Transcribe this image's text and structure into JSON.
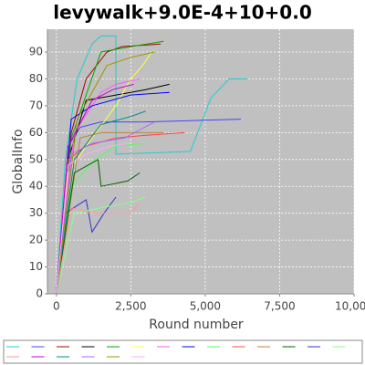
{
  "chart_data": {
    "type": "line",
    "title": "levywalk+9.0E-4+10+0.0",
    "x_label": "Round number",
    "y_label": "GlobalInfo",
    "xlim": [
      -300,
      10000
    ],
    "ylim": [
      0,
      98.5
    ],
    "xticks": [
      0,
      {
        "value": 2500,
        "label": "2,500"
      },
      {
        "value": 5000,
        "label": "5,000"
      },
      {
        "value": 7500,
        "label": "7,500"
      },
      {
        "value": 10000,
        "label": "10,000"
      }
    ],
    "yticks": [
      0,
      10,
      20,
      30,
      40,
      50,
      60,
      70,
      80,
      90
    ],
    "grid": true,
    "series": [
      {
        "color": "#22cccc",
        "x": [
          0,
          300,
          700,
          1200,
          1500,
          2000,
          2000,
          4500,
          5200,
          5800,
          6400
        ],
        "values": [
          0,
          50,
          80,
          93,
          96,
          96,
          52,
          53,
          73,
          80,
          80
        ]
      },
      {
        "color": "#4444ff",
        "x": [
          0,
          400,
          800,
          1500,
          3000,
          6200
        ],
        "values": [
          0,
          55,
          62,
          64,
          64,
          65
        ]
      },
      {
        "color": "#aa0000",
        "x": [
          0,
          500,
          1000,
          1700,
          2200,
          3500
        ],
        "values": [
          0,
          60,
          80,
          90,
          92,
          93
        ]
      },
      {
        "color": "#000000",
        "x": [
          0,
          400,
          1000,
          2500,
          3000,
          3800
        ],
        "values": [
          0,
          50,
          72,
          75,
          76,
          78
        ]
      },
      {
        "color": "#00aa00",
        "x": [
          0,
          500,
          1500,
          2500,
          3600
        ],
        "values": [
          0,
          58,
          90,
          92,
          94
        ]
      },
      {
        "color": "#ffff44",
        "x": [
          0,
          400,
          1000,
          2000,
          2500,
          2900,
          3200
        ],
        "values": [
          0,
          45,
          55,
          70,
          80,
          85,
          90
        ]
      },
      {
        "color": "#ff55ff",
        "x": [
          0,
          600,
          1500,
          2000,
          2800
        ],
        "values": [
          0,
          60,
          75,
          78,
          80
        ]
      },
      {
        "color": "#0000ff",
        "x": [
          0,
          500,
          1200,
          2500,
          3800
        ],
        "values": [
          0,
          65,
          70,
          74,
          75
        ]
      },
      {
        "color": "#55ff55",
        "x": [
          0,
          500,
          1300,
          2000,
          3000
        ],
        "values": [
          0,
          40,
          50,
          55,
          56
        ]
      },
      {
        "color": "#ff4444",
        "x": [
          0,
          400,
          1000,
          2000,
          3000,
          4300
        ],
        "values": [
          0,
          50,
          55,
          58,
          59,
          60
        ]
      },
      {
        "color": "#c08040",
        "x": [
          0,
          800,
          1500,
          2500,
          3600
        ],
        "values": [
          0,
          58,
          60,
          60,
          60
        ]
      },
      {
        "color": "#006600",
        "x": [
          0,
          600,
          1400,
          1500,
          2400,
          2800
        ],
        "values": [
          0,
          45,
          50,
          40,
          42,
          45
        ]
      },
      {
        "color": "#3333cc",
        "x": [
          0,
          300,
          1000,
          1200,
          1600,
          2000
        ],
        "values": [
          0,
          30,
          35,
          23,
          30,
          36
        ]
      },
      {
        "color": "#88ff88",
        "x": [
          0,
          600,
          1500,
          2500,
          3000
        ],
        "values": [
          0,
          30,
          32,
          34,
          36
        ]
      },
      {
        "color": "#ff9999",
        "x": [
          0,
          500,
          1300,
          2500,
          2800
        ],
        "values": [
          0,
          32,
          30,
          30,
          34
        ]
      },
      {
        "color": "#cc00cc",
        "x": [
          0,
          400,
          1200,
          1900,
          2600
        ],
        "values": [
          0,
          55,
          72,
          76,
          78
        ]
      },
      {
        "color": "#008888",
        "x": [
          0,
          600,
          1500,
          2500,
          3000
        ],
        "values": [
          0,
          50,
          63,
          66,
          68
        ]
      },
      {
        "color": "#aa66ff",
        "x": [
          0,
          500,
          1200,
          2300,
          3300
        ],
        "values": [
          0,
          52,
          56,
          58,
          64
        ]
      },
      {
        "color": "#999900",
        "x": [
          0,
          700,
          1700,
          2500,
          3300
        ],
        "values": [
          0,
          65,
          85,
          88,
          90
        ]
      },
      {
        "color": "#ffaaff",
        "x": [
          0,
          400,
          1000,
          1800,
          2500
        ],
        "values": [
          0,
          48,
          52,
          55,
          56
        ]
      }
    ]
  }
}
